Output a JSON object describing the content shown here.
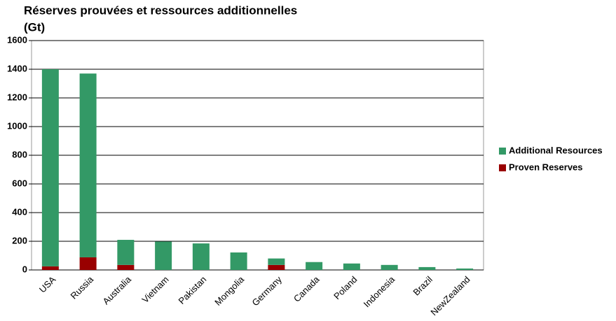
{
  "chart_data": {
    "type": "stacked-bar",
    "title": "Réserves prouvées et ressources additionnelles",
    "subtitle": "(Gt)",
    "categories": [
      "USA",
      "Russia",
      "Australia",
      "Vietnam",
      "Pakistan",
      "Mongolia",
      "Germany",
      "Canada",
      "Poland",
      "Indonesia",
      "Brazil",
      "NewZealand"
    ],
    "series": [
      {
        "name": "Proven Reserves",
        "color": "#990000",
        "values": [
          25,
          88,
          35,
          0,
          0,
          0,
          35,
          0,
          0,
          0,
          0,
          0
        ]
      },
      {
        "name": "Additional Resources",
        "color": "#339966",
        "values": [
          1375,
          1282,
          175,
          198,
          185,
          122,
          45,
          55,
          45,
          35,
          20,
          10
        ]
      }
    ],
    "ylim": [
      0,
      1600
    ],
    "yticks": [
      0,
      200,
      400,
      600,
      800,
      1000,
      1200,
      1400,
      1600
    ],
    "grid": true,
    "legend": "right"
  }
}
